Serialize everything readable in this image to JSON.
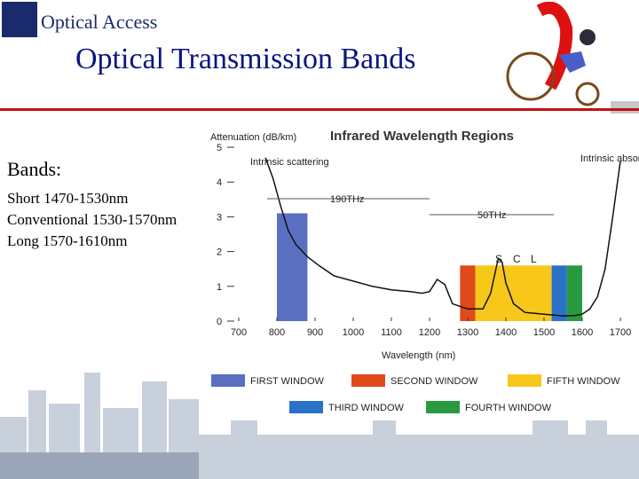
{
  "header": {
    "logo_text": "Optical Access",
    "title": "Optical Transmission Bands",
    "accent_color": "#c01010",
    "title_color": "#0b1580"
  },
  "bands_text": {
    "heading": "Bands:",
    "items": [
      "Short 1470-1530nm",
      "Conventional 1530-1570nm",
      "Long 1570-1610nm"
    ]
  },
  "chart_data": {
    "type": "line",
    "title": "Infrared Wavelength Regions",
    "ylabel": "Attenuation (dB/km)",
    "xlabel": "Wavelength (nm)",
    "xlim": [
      700,
      1700
    ],
    "ylim": [
      0,
      5
    ],
    "x_ticks": [
      700,
      800,
      900,
      1000,
      1100,
      1200,
      1300,
      1400,
      1500,
      1600,
      1700
    ],
    "y_ticks": [
      0,
      1,
      2,
      3,
      4,
      5
    ],
    "series": [
      {
        "x": [
          770,
          790,
          810,
          830,
          850,
          880,
          910,
          950,
          1000,
          1050,
          1100,
          1150,
          1180,
          1200,
          1220,
          1240,
          1260,
          1300,
          1340,
          1360,
          1380,
          1390,
          1400,
          1420,
          1450,
          1500,
          1550,
          1580,
          1600,
          1620,
          1640,
          1660,
          1680,
          1700
        ],
        "y": [
          4.7,
          4.1,
          3.3,
          2.6,
          2.2,
          1.85,
          1.6,
          1.3,
          1.15,
          1.0,
          0.9,
          0.85,
          0.8,
          0.85,
          1.2,
          1.05,
          0.5,
          0.35,
          0.35,
          0.8,
          1.8,
          1.7,
          1.1,
          0.5,
          0.25,
          0.2,
          0.15,
          0.16,
          0.2,
          0.35,
          0.7,
          1.5,
          3.0,
          4.6
        ]
      }
    ],
    "bands": [
      {
        "label": "FIRST WINDOW",
        "x0": 800,
        "x1": 880,
        "color": "#5a6fc0"
      },
      {
        "label": "SECOND WINDOW",
        "x0": 1280,
        "x1": 1320,
        "color": "#e04a1a"
      },
      {
        "label": "FIFTH WINDOW",
        "x0": 1320,
        "x1": 1520,
        "color": "#f7c81a"
      },
      {
        "label": "THIRD WINDOW",
        "x0": 1520,
        "x1": 1560,
        "color": "#2a72c8"
      },
      {
        "label": "FOURTH WINDOW",
        "x0": 1560,
        "x1": 1600,
        "color": "#2a9a40"
      }
    ],
    "annotations": {
      "intrinsic_scattering": "Intrinsic scattering",
      "intrinsic_absorption": "Intrinsic absorption",
      "span_190": "190THz",
      "span_50": "50THz",
      "s": "S",
      "c": "C",
      "l": "L"
    },
    "legend": [
      {
        "label": "FIRST WINDOW",
        "color": "#5a6fc0"
      },
      {
        "label": "SECOND WINDOW",
        "color": "#e04a1a"
      },
      {
        "label": "FIFTH WINDOW",
        "color": "#f7c81a"
      },
      {
        "label": "THIRD WINDOW",
        "color": "#2a72c8"
      },
      {
        "label": "FOURTH WINDOW",
        "color": "#2a9a40"
      }
    ],
    "grid": false,
    "legend_position": "bottom"
  }
}
